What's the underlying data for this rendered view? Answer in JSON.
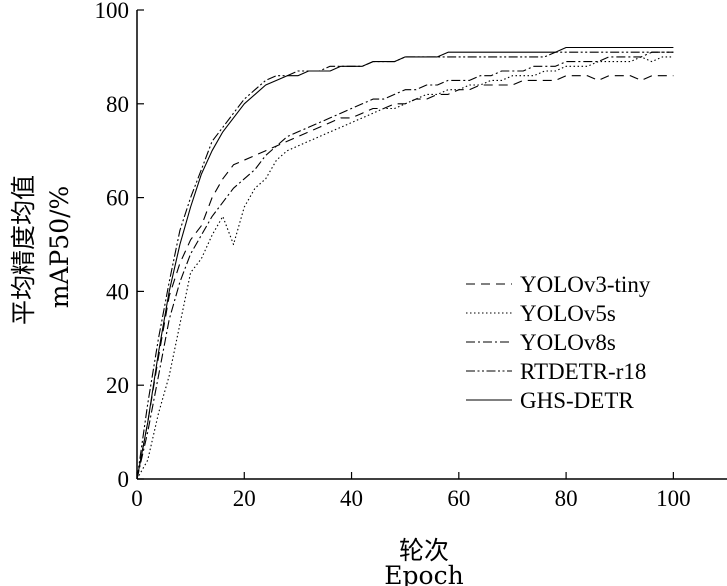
{
  "chart_data": {
    "type": "line",
    "title": "",
    "xlabel_cn": "轮次",
    "xlabel_en": "Epoch",
    "ylabel_cn": "平均精度均值",
    "ylabel_en": "mAP50/%",
    "xlim": [
      0,
      110
    ],
    "ylim": [
      0,
      100
    ],
    "x_ticks": [
      0,
      20,
      40,
      60,
      80,
      100
    ],
    "y_ticks": [
      0,
      20,
      40,
      60,
      80,
      100
    ],
    "grid": false,
    "legend_position": "right",
    "x": [
      0,
      2,
      4,
      6,
      8,
      10,
      12,
      14,
      16,
      18,
      20,
      22,
      24,
      26,
      28,
      30,
      32,
      34,
      36,
      38,
      40,
      42,
      44,
      46,
      48,
      50,
      52,
      54,
      56,
      58,
      60,
      62,
      64,
      66,
      68,
      70,
      72,
      74,
      76,
      78,
      80,
      82,
      84,
      86,
      88,
      90,
      92,
      94,
      96,
      98,
      100
    ],
    "series": [
      {
        "name": "YOLOv3-tiny",
        "dash": "9,6",
        "values": [
          0,
          12,
          26,
          39,
          46,
          51,
          54,
          60,
          64,
          67,
          68,
          69,
          70,
          71,
          72,
          73,
          74,
          75,
          76,
          77,
          77,
          78,
          79,
          79,
          80,
          80,
          81,
          81,
          82,
          82,
          83,
          83,
          84,
          84,
          84,
          84,
          85,
          85,
          85,
          85,
          86,
          86,
          86,
          85,
          86,
          86,
          86,
          85,
          86,
          86,
          86
        ]
      },
      {
        "name": "YOLOv5s",
        "dash": "1.5,2.5",
        "values": [
          0,
          4,
          14,
          22,
          33,
          44,
          47,
          52,
          56,
          50,
          58,
          62,
          64,
          68,
          70,
          71,
          72,
          73,
          74,
          75,
          76,
          77,
          78,
          79,
          79,
          80,
          81,
          82,
          82,
          83,
          83,
          84,
          84,
          85,
          85,
          86,
          86,
          86,
          87,
          87,
          88,
          88,
          88,
          89,
          89,
          89,
          89,
          90,
          89,
          90,
          90
        ]
      },
      {
        "name": "YOLOv8s",
        "dash": "9,3,2,3",
        "values": [
          0,
          10,
          22,
          34,
          42,
          48,
          52,
          56,
          59,
          62,
          64,
          66,
          69,
          71,
          73,
          74,
          75,
          76,
          77,
          78,
          79,
          80,
          81,
          81,
          82,
          83,
          83,
          84,
          84,
          85,
          85,
          85,
          86,
          86,
          87,
          87,
          87,
          88,
          88,
          88,
          89,
          89,
          89,
          89,
          90,
          90,
          90,
          90,
          91,
          91,
          91
        ]
      },
      {
        "name": "RTDETR-r18",
        "dash": "9,2.5,2,2.5,2,2.5",
        "values": [
          0,
          16,
          30,
          42,
          53,
          60,
          66,
          72,
          75,
          78,
          81,
          83,
          85,
          86,
          86,
          87,
          87,
          87,
          88,
          88,
          88,
          88,
          89,
          89,
          89,
          90,
          90,
          90,
          90,
          90,
          90,
          90,
          90,
          90,
          90,
          90,
          90,
          90,
          90,
          91,
          91,
          91,
          91,
          91,
          91,
          91,
          91,
          91,
          91,
          91,
          91
        ]
      },
      {
        "name": "GHS-DETR",
        "dash": "",
        "values": [
          0,
          12,
          27,
          40,
          50,
          58,
          65,
          70,
          74,
          77,
          80,
          82,
          84,
          85,
          86,
          86,
          87,
          87,
          87,
          88,
          88,
          88,
          89,
          89,
          89,
          90,
          90,
          90,
          90,
          91,
          91,
          91,
          91,
          91,
          91,
          91,
          91,
          91,
          91,
          91,
          92,
          92,
          92,
          92,
          92,
          92,
          92,
          92,
          92,
          92,
          92
        ]
      }
    ]
  }
}
